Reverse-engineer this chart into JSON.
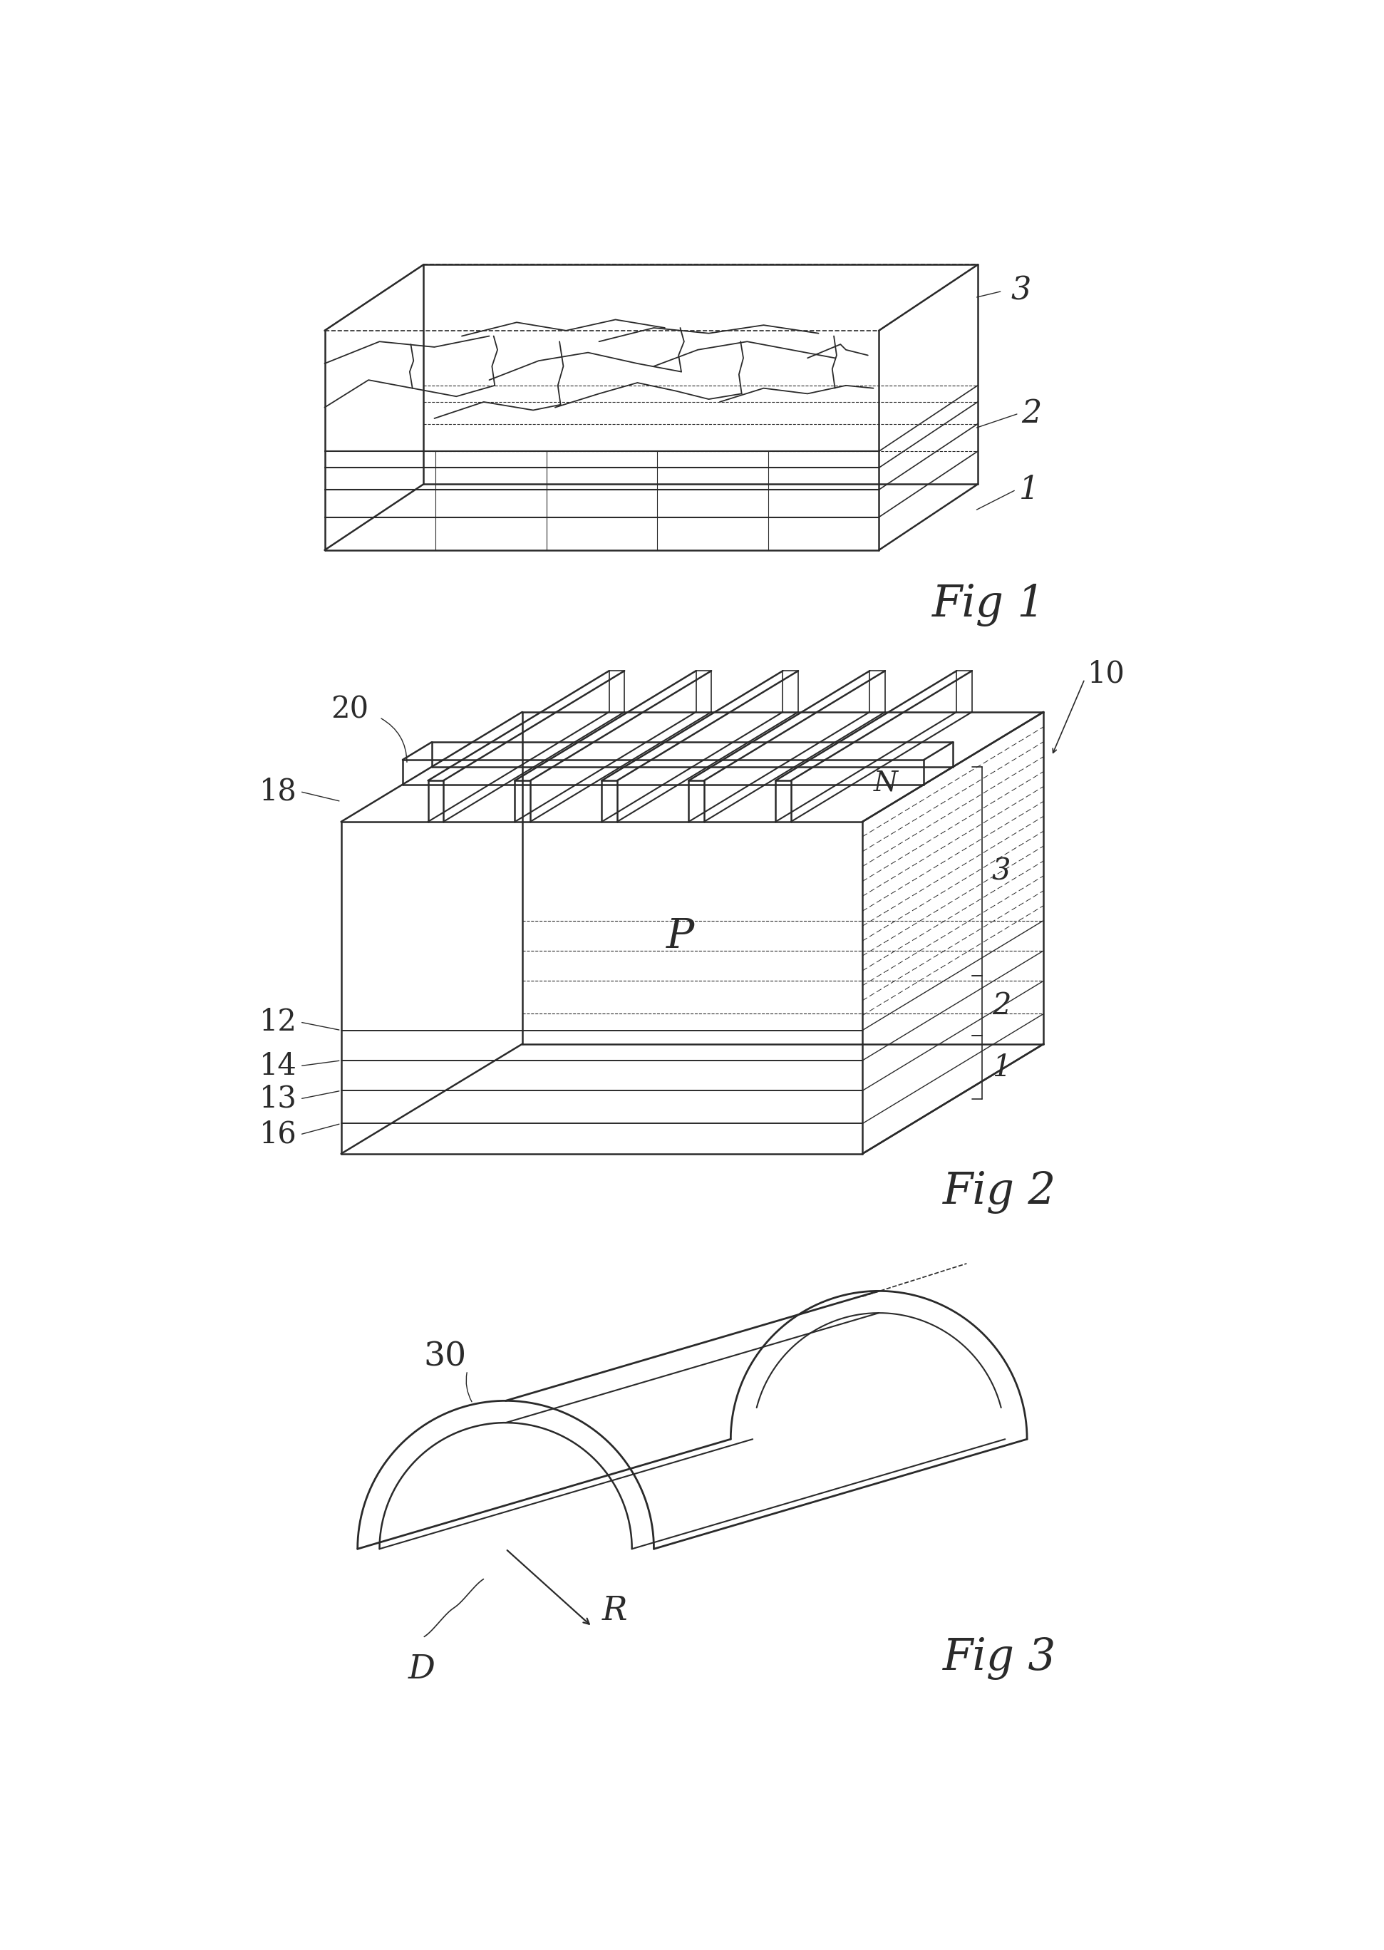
{
  "bg_color": "#ffffff",
  "line_color": "#2a2a2a",
  "lw_main": 1.8,
  "lw_thin": 1.0,
  "fig1_label": "Fig 1",
  "fig2_label": "Fig 2",
  "fig3_label": "Fig 3"
}
